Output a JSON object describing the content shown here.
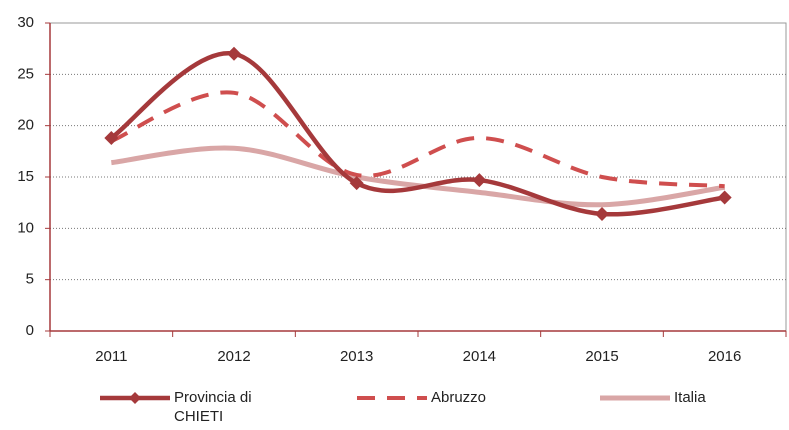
{
  "chart_data": {
    "type": "line",
    "categories": [
      "2011",
      "2012",
      "2013",
      "2014",
      "2015",
      "2016"
    ],
    "series": [
      {
        "name": "Provincia di CHIETI",
        "color": "#a5393b",
        "values": [
          18.8,
          27,
          14.4,
          14.7,
          11.4,
          13.0
        ]
      },
      {
        "name": "Abruzzo",
        "color": "#cf4e4e",
        "values": [
          18.5,
          23.2,
          15.2,
          18.8,
          15.0,
          14.1
        ]
      },
      {
        "name": "Italia",
        "color": "#d9a6a6",
        "values": [
          16.4,
          17.8,
          15.0,
          13.5,
          12.3,
          14.0
        ]
      }
    ],
    "ylim": [
      0,
      30
    ],
    "yticks": [
      0,
      5,
      10,
      15,
      20,
      25,
      30
    ],
    "grid": true,
    "smooth": true
  }
}
